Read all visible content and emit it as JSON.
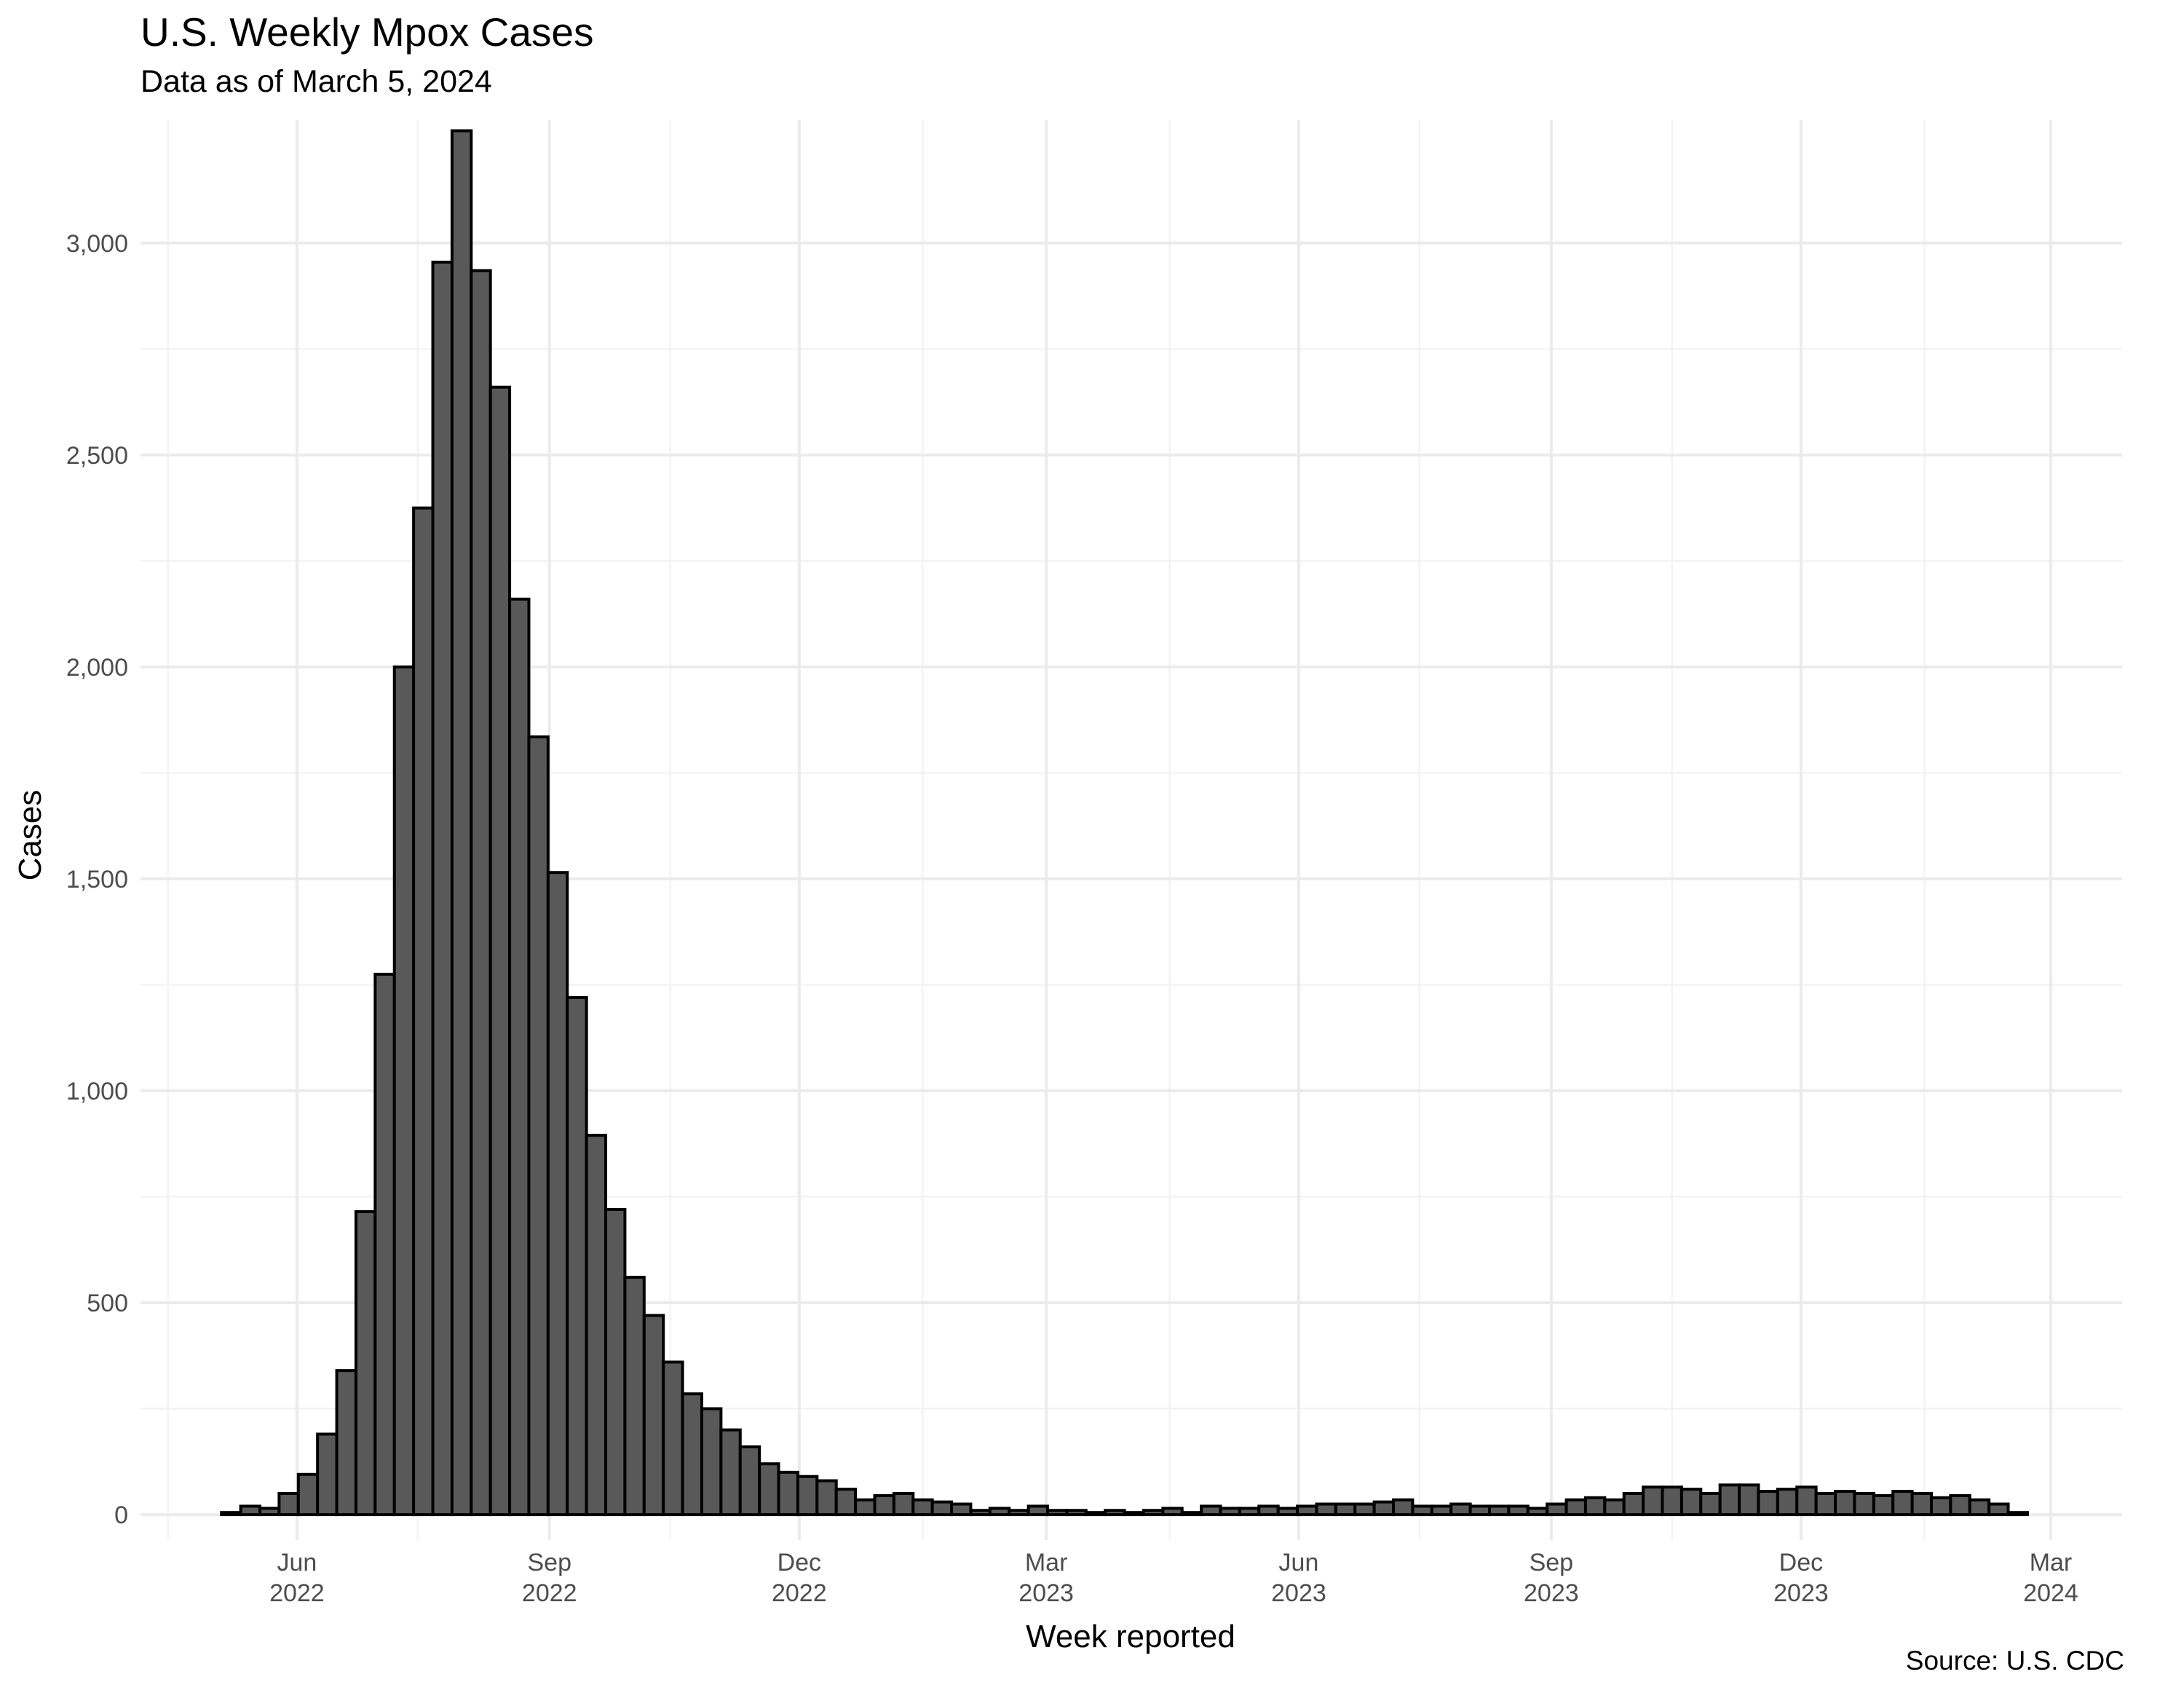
{
  "title": "U.S. Weekly Mpox Cases",
  "subtitle": "Data as of March 5, 2024",
  "caption": "Source: U.S. CDC",
  "chart_data": {
    "type": "bar",
    "title": "U.S. Weekly Mpox Cases",
    "subtitle": "Data as of March 5, 2024",
    "xlabel": "Week reported",
    "ylabel": "Cases",
    "ylim": [
      -60,
      3290
    ],
    "xlim": [
      "2022-04-05",
      "2024-03-27"
    ],
    "grid": true,
    "bar_color": "#595959",
    "y_ticks": [
      {
        "value": 0,
        "label": "0"
      },
      {
        "value": 500,
        "label": "500"
      },
      {
        "value": 1000,
        "label": "1,000"
      },
      {
        "value": 1500,
        "label": "1,500"
      },
      {
        "value": 2000,
        "label": "2,000"
      },
      {
        "value": 2500,
        "label": "2,500"
      },
      {
        "value": 3000,
        "label": "3,000"
      }
    ],
    "x_ticks": [
      {
        "date": "2022-06-01",
        "line1": "Jun",
        "line2": "2022"
      },
      {
        "date": "2022-09-01",
        "line1": "Sep",
        "line2": "2022"
      },
      {
        "date": "2022-12-01",
        "line1": "Dec",
        "line2": "2022"
      },
      {
        "date": "2023-03-01",
        "line1": "Mar",
        "line2": "2023"
      },
      {
        "date": "2023-06-01",
        "line1": "Jun",
        "line2": "2023"
      },
      {
        "date": "2023-09-01",
        "line1": "Sep",
        "line2": "2023"
      },
      {
        "date": "2023-12-01",
        "line1": "Dec",
        "line2": "2023"
      },
      {
        "date": "2024-03-01",
        "line1": "Mar",
        "line2": "2024"
      }
    ],
    "x_minor_ticks": [
      "2022-04-15",
      "2022-07-15",
      "2022-10-15",
      "2023-01-15",
      "2023-04-15",
      "2023-07-15",
      "2023-10-15",
      "2024-01-15"
    ],
    "series": [
      {
        "x": [
          "2022-05-08",
          "2022-05-15",
          "2022-05-22",
          "2022-05-29",
          "2022-06-05",
          "2022-06-12",
          "2022-06-19",
          "2022-06-26",
          "2022-07-03",
          "2022-07-10",
          "2022-07-17",
          "2022-07-24",
          "2022-07-31",
          "2022-08-07",
          "2022-08-14",
          "2022-08-21",
          "2022-08-28",
          "2022-09-04",
          "2022-09-11",
          "2022-09-18",
          "2022-09-25",
          "2022-10-02",
          "2022-10-09",
          "2022-10-16",
          "2022-10-23",
          "2022-10-30",
          "2022-11-06",
          "2022-11-13",
          "2022-11-20",
          "2022-11-27",
          "2022-12-04",
          "2022-12-11",
          "2022-12-18",
          "2022-12-25",
          "2023-01-01",
          "2023-01-08",
          "2023-01-15",
          "2023-01-22",
          "2023-01-29",
          "2023-02-05",
          "2023-02-12",
          "2023-02-19",
          "2023-02-26",
          "2023-03-05",
          "2023-03-12",
          "2023-03-19",
          "2023-03-26",
          "2023-04-02",
          "2023-04-09",
          "2023-04-16",
          "2023-04-23",
          "2023-04-30",
          "2023-05-07",
          "2023-05-14",
          "2023-05-21",
          "2023-05-28",
          "2023-06-04",
          "2023-06-11",
          "2023-06-18",
          "2023-06-25",
          "2023-07-02",
          "2023-07-09",
          "2023-07-16",
          "2023-07-23",
          "2023-07-30",
          "2023-08-06",
          "2023-08-13",
          "2023-08-20",
          "2023-08-27",
          "2023-09-03",
          "2023-09-10",
          "2023-09-17",
          "2023-09-24",
          "2023-10-01",
          "2023-10-08",
          "2023-10-15",
          "2023-10-22",
          "2023-10-29",
          "2023-11-05",
          "2023-11-12",
          "2023-11-19",
          "2023-11-26",
          "2023-12-03",
          "2023-12-10",
          "2023-12-17",
          "2023-12-24",
          "2023-12-31",
          "2024-01-07",
          "2024-01-14",
          "2024-01-21",
          "2024-01-28",
          "2024-02-04",
          "2024-02-11",
          "2024-02-18"
        ],
        "values": [
          5,
          20,
          15,
          50,
          95,
          190,
          340,
          715,
          1275,
          2000,
          2375,
          2955,
          3265,
          2935,
          2660,
          2160,
          1835,
          1515,
          1220,
          895,
          720,
          560,
          470,
          360,
          285,
          250,
          200,
          160,
          120,
          100,
          90,
          80,
          60,
          35,
          45,
          50,
          35,
          30,
          25,
          10,
          15,
          10,
          20,
          10,
          10,
          5,
          10,
          5,
          10,
          15,
          5,
          20,
          15,
          15,
          20,
          15,
          20,
          25,
          25,
          25,
          30,
          35,
          20,
          20,
          25,
          20,
          20,
          20,
          15,
          25,
          35,
          40,
          35,
          50,
          65,
          65,
          60,
          50,
          70,
          70,
          55,
          60,
          65,
          50,
          55,
          50,
          45,
          55,
          50,
          40,
          45,
          35,
          25,
          5
        ]
      }
    ]
  }
}
